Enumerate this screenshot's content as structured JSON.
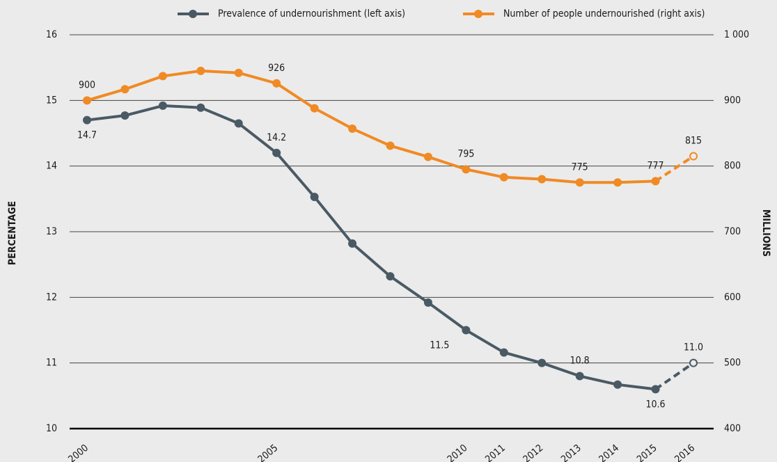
{
  "chart_data": {
    "type": "line",
    "categories": [
      "2000",
      null,
      null,
      null,
      null,
      "2005",
      null,
      null,
      null,
      null,
      "2010",
      "2011",
      "2012",
      "2013",
      "2014",
      "2015",
      "2016"
    ],
    "series": [
      {
        "name": "Prevalence of undernourishment  (left axis)",
        "color": "#4a5a65",
        "axis": "y",
        "values": [
          14.7,
          14.77,
          14.92,
          14.89,
          14.65,
          14.2,
          13.53,
          12.82,
          12.32,
          11.92,
          11.5,
          11.16,
          11.0,
          10.8,
          10.67,
          10.6,
          11.0
        ],
        "value_labels": [
          "14.7",
          null,
          null,
          null,
          null,
          "14.2",
          null,
          null,
          null,
          null,
          "11.5",
          null,
          null,
          "10.8",
          null,
          "10.6",
          "11.0"
        ]
      },
      {
        "name": "Number of people undernourished (right axis)",
        "color": "#f08a24",
        "axis": "y2",
        "values": [
          900,
          917,
          937,
          945,
          942,
          926,
          888,
          857,
          831,
          814,
          795,
          783,
          780,
          775,
          775,
          777,
          815
        ],
        "value_labels": [
          "900",
          null,
          null,
          null,
          null,
          "926",
          null,
          null,
          null,
          null,
          "795",
          null,
          null,
          "775",
          null,
          "777",
          "815"
        ]
      }
    ],
    "ylabel": "PERCENTAGE",
    "y2label": "MILLIONS",
    "ylim": [
      10,
      16
    ],
    "yticks": [
      10,
      11,
      12,
      13,
      14,
      15,
      16
    ],
    "y2lim": [
      400,
      1000
    ],
    "y2ticks": [
      400,
      500,
      600,
      700,
      800,
      900,
      {
        "value": 1000,
        "label": "1 000"
      }
    ],
    "grid": true,
    "legend": "top",
    "projected_index": 16
  }
}
